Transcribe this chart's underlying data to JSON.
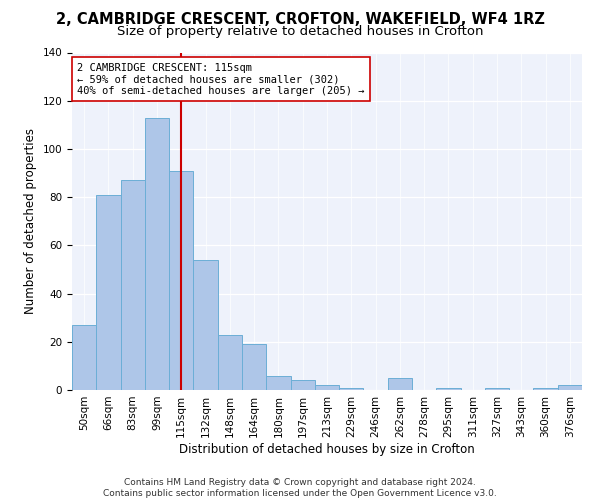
{
  "title": "2, CAMBRIDGE CRESCENT, CROFTON, WAKEFIELD, WF4 1RZ",
  "subtitle": "Size of property relative to detached houses in Crofton",
  "xlabel": "Distribution of detached houses by size in Crofton",
  "ylabel": "Number of detached properties",
  "categories": [
    "50sqm",
    "66sqm",
    "83sqm",
    "99sqm",
    "115sqm",
    "132sqm",
    "148sqm",
    "164sqm",
    "180sqm",
    "197sqm",
    "213sqm",
    "229sqm",
    "246sqm",
    "262sqm",
    "278sqm",
    "295sqm",
    "311sqm",
    "327sqm",
    "343sqm",
    "360sqm",
    "376sqm"
  ],
  "values": [
    27,
    81,
    87,
    113,
    91,
    54,
    23,
    19,
    6,
    4,
    2,
    1,
    0,
    5,
    0,
    1,
    0,
    1,
    0,
    1,
    2
  ],
  "bar_color": "#aec6e8",
  "bar_edge_color": "#6baed6",
  "vline_x_index": 4,
  "vline_color": "#cc0000",
  "annotation_text": "2 CAMBRIDGE CRESCENT: 115sqm\n← 59% of detached houses are smaller (302)\n40% of semi-detached houses are larger (205) →",
  "annotation_box_color": "#ffffff",
  "annotation_box_edge_color": "#cc0000",
  "ylim": [
    0,
    140
  ],
  "yticks": [
    0,
    20,
    40,
    60,
    80,
    100,
    120,
    140
  ],
  "background_color": "#eef2fb",
  "footer": "Contains HM Land Registry data © Crown copyright and database right 2024.\nContains public sector information licensed under the Open Government Licence v3.0.",
  "title_fontsize": 10.5,
  "subtitle_fontsize": 9.5,
  "xlabel_fontsize": 8.5,
  "ylabel_fontsize": 8.5,
  "tick_fontsize": 7.5,
  "footer_fontsize": 6.5,
  "annotation_fontsize": 7.5
}
